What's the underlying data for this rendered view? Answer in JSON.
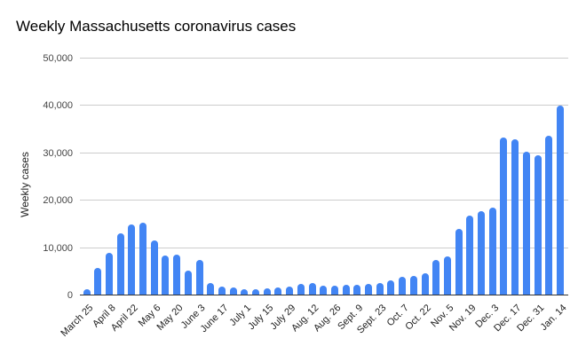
{
  "chart_data": {
    "type": "bar",
    "title": "Weekly Massachusetts coronavirus cases",
    "xlabel": "",
    "ylabel": "Weekly cases",
    "ylim": [
      0,
      50000
    ],
    "yticks": [
      0,
      10000,
      20000,
      30000,
      40000,
      50000
    ],
    "ytick_labels": [
      "0",
      "10,000",
      "20,000",
      "30,000",
      "40,000",
      "50,000"
    ],
    "grid": "horizontal",
    "legend": "none",
    "categories": [
      "March 25",
      "",
      "April 8",
      "",
      "April 22",
      "",
      "May 6",
      "",
      "May 20",
      "",
      "June 3",
      "",
      "June 17",
      "",
      "July 1",
      "",
      "July 15",
      "",
      "July 29",
      "",
      "Aug. 12",
      "",
      "Aug. 26",
      "",
      "Sept. 9",
      "",
      "Sept. 23",
      "",
      "Oct. 7",
      "",
      "Oct. 22",
      "",
      "Nov. 5",
      "",
      "Nov. 19",
      "",
      "Dec. 3",
      "",
      "Dec. 17",
      "",
      "Dec. 31",
      "",
      "Jan. 14"
    ],
    "visible_xtick_labels": [
      "March 25",
      "April 8",
      "April 22",
      "May 6",
      "May 20",
      "June 3",
      "June 17",
      "July 1",
      "July 15",
      "July 29",
      "Aug. 12",
      "Aug. 26",
      "Sept. 9",
      "Sept. 23",
      "Oct. 7",
      "Oct. 22",
      "Nov. 5",
      "Nov. 19",
      "Dec. 3",
      "Dec. 17",
      "Dec. 31",
      "Jan. 14"
    ],
    "values": [
      1300,
      5800,
      9000,
      13200,
      15000,
      15300,
      11700,
      8500,
      8600,
      5200,
      7500,
      2600,
      1950,
      1600,
      1300,
      1400,
      1450,
      1650,
      1950,
      2400,
      2700,
      2150,
      2000,
      2200,
      2300,
      2500,
      2700,
      3200,
      3900,
      4150,
      4650,
      7550,
      8200,
      14100,
      16900,
      17700,
      18450,
      33350,
      32900,
      30250,
      29600,
      33750,
      40100
    ],
    "colors": {
      "bar": "#4285f4",
      "gridline": "#cccccc",
      "baseline": "#333333",
      "title_text": "#000000",
      "tick_text": "#444444"
    }
  }
}
